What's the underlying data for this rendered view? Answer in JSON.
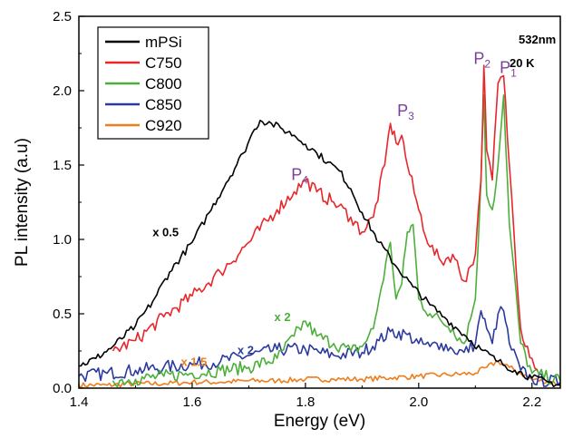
{
  "chart_data": {
    "type": "line",
    "xlabel": "Energy (eV)",
    "ylabel": "PL intensity (a.u)",
    "xlim": [
      1.4,
      2.25
    ],
    "ylim": [
      0.0,
      2.5
    ],
    "xticks": [
      "1.4",
      "1.6",
      "1.8",
      "2.0",
      "2.2"
    ],
    "yticks": [
      "0.0",
      "0.5",
      "1.0",
      "1.5",
      "2.0",
      "2.5"
    ],
    "grid": false,
    "legend_position": "top-left",
    "annotations": {
      "conditions": [
        "532nm",
        "20 K"
      ],
      "multipliers": [
        {
          "text": "x 0.5",
          "x": 1.53,
          "y": 1.02,
          "color": "#000000"
        },
        {
          "text": "x 2",
          "x": 1.745,
          "y": 0.45,
          "color": "#4caf3a"
        },
        {
          "text": "x 2",
          "x": 1.68,
          "y": 0.23,
          "color": "#2b3a9f"
        },
        {
          "text": "x 1.5",
          "x": 1.58,
          "y": 0.15,
          "color": "#ef7d1a"
        }
      ],
      "peaks": [
        {
          "letter": "P",
          "sub": "1",
          "x": 2.143,
          "y": 2.12,
          "color": "#7b3f98"
        },
        {
          "letter": "P",
          "sub": "2",
          "x": 2.097,
          "y": 2.18,
          "color": "#7b3f98"
        },
        {
          "letter": "P",
          "sub": "3",
          "x": 1.962,
          "y": 1.83,
          "color": "#7b3f98"
        },
        {
          "letter": "P",
          "sub": "4",
          "x": 1.775,
          "y": 1.4,
          "color": "#7b3f98"
        }
      ]
    },
    "series": [
      {
        "name": "mPSi",
        "color": "#000000",
        "x": [
          1.4,
          1.43,
          1.46,
          1.5,
          1.53,
          1.56,
          1.6,
          1.63,
          1.66,
          1.69,
          1.71,
          1.72,
          1.74,
          1.76,
          1.78,
          1.8,
          1.82,
          1.84,
          1.86,
          1.88,
          1.9,
          1.93,
          1.96,
          1.99,
          2.02,
          2.05,
          2.08,
          2.11,
          2.14,
          2.17,
          2.2,
          2.23,
          2.25
        ],
        "y": [
          0.15,
          0.2,
          0.28,
          0.42,
          0.58,
          0.78,
          0.98,
          1.18,
          1.38,
          1.58,
          1.74,
          1.8,
          1.78,
          1.74,
          1.7,
          1.64,
          1.58,
          1.52,
          1.46,
          1.34,
          1.18,
          0.98,
          0.82,
          0.68,
          0.56,
          0.46,
          0.36,
          0.26,
          0.18,
          0.12,
          0.07,
          0.04,
          0.02
        ]
      },
      {
        "name": "C750",
        "color": "#e8272a",
        "x": [
          1.46,
          1.5,
          1.55,
          1.6,
          1.65,
          1.7,
          1.75,
          1.78,
          1.8,
          1.82,
          1.85,
          1.88,
          1.9,
          1.92,
          1.94,
          1.95,
          1.96,
          1.97,
          1.98,
          2.0,
          2.02,
          2.04,
          2.06,
          2.08,
          2.1,
          2.11,
          2.115,
          2.12,
          2.13,
          2.14,
          2.15,
          2.16,
          2.18,
          2.2,
          2.21
        ],
        "y": [
          0.25,
          0.32,
          0.48,
          0.62,
          0.78,
          0.98,
          1.2,
          1.32,
          1.4,
          1.32,
          1.25,
          1.15,
          1.05,
          1.15,
          1.5,
          1.78,
          1.65,
          1.7,
          1.5,
          1.2,
          0.95,
          0.85,
          0.9,
          0.72,
          0.9,
          1.4,
          2.17,
          1.6,
          1.4,
          2.05,
          2.1,
          1.5,
          0.4,
          0.2,
          0.12
        ]
      },
      {
        "name": "C800",
        "color": "#4caf3a",
        "x": [
          1.46,
          1.5,
          1.55,
          1.6,
          1.65,
          1.7,
          1.75,
          1.78,
          1.8,
          1.82,
          1.85,
          1.88,
          1.9,
          1.92,
          1.93,
          1.95,
          1.96,
          1.97,
          1.98,
          1.99,
          2.0,
          2.02,
          2.04,
          2.06,
          2.08,
          2.1,
          2.11,
          2.115,
          2.12,
          2.13,
          2.14,
          2.15,
          2.16,
          2.18,
          2.2,
          2.25
        ],
        "y": [
          0.05,
          0.06,
          0.08,
          0.1,
          0.12,
          0.14,
          0.2,
          0.35,
          0.45,
          0.35,
          0.3,
          0.25,
          0.28,
          0.4,
          0.6,
          0.98,
          0.6,
          0.7,
          1.05,
          1.1,
          0.6,
          0.5,
          0.45,
          0.4,
          0.3,
          0.6,
          1.4,
          1.97,
          1.3,
          1.2,
          1.5,
          1.97,
          1.1,
          0.3,
          0.1,
          0.05
        ]
      },
      {
        "name": "C850",
        "color": "#2b3a9f",
        "x": [
          1.4,
          1.45,
          1.5,
          1.55,
          1.6,
          1.65,
          1.7,
          1.75,
          1.8,
          1.85,
          1.9,
          1.93,
          1.95,
          1.98,
          2.0,
          2.02,
          2.04,
          2.06,
          2.08,
          2.1,
          2.11,
          2.12,
          2.13,
          2.14,
          2.15,
          2.16,
          2.18,
          2.2,
          2.25
        ],
        "y": [
          0.08,
          0.1,
          0.12,
          0.14,
          0.16,
          0.18,
          0.22,
          0.26,
          0.26,
          0.22,
          0.24,
          0.32,
          0.38,
          0.36,
          0.3,
          0.28,
          0.3,
          0.26,
          0.24,
          0.3,
          0.52,
          0.4,
          0.3,
          0.5,
          0.52,
          0.3,
          0.12,
          0.06,
          0.04
        ]
      },
      {
        "name": "C920",
        "color": "#ef7d1a",
        "x": [
          1.4,
          1.45,
          1.5,
          1.55,
          1.6,
          1.65,
          1.7,
          1.75,
          1.8,
          1.85,
          1.9,
          1.95,
          2.0,
          2.05,
          2.1,
          2.12,
          2.14,
          2.16,
          2.18,
          2.2,
          2.25
        ],
        "y": [
          0.02,
          0.02,
          0.03,
          0.03,
          0.04,
          0.04,
          0.05,
          0.05,
          0.06,
          0.06,
          0.06,
          0.07,
          0.08,
          0.09,
          0.1,
          0.14,
          0.18,
          0.14,
          0.1,
          0.06,
          0.03
        ]
      }
    ]
  }
}
